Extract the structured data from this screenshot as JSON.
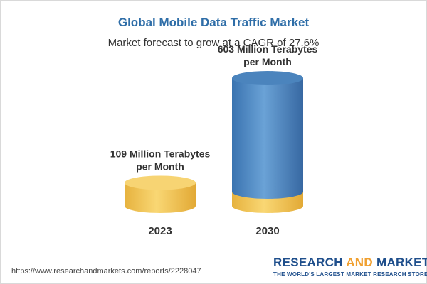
{
  "chart_data": {
    "type": "bar",
    "title": "Global Mobile Data Traffic Market",
    "subtitle": "Market forecast to grow at a CAGR of 27.6%",
    "categories": [
      "2023",
      "2030"
    ],
    "values": [
      109,
      603
    ],
    "value_labels": [
      [
        "109 Million Terabytes",
        "per Month"
      ],
      [
        "603 Million Terabytes",
        "per Month"
      ]
    ],
    "base_color": "#f5c961",
    "highlight_color": "#4f8bc6"
  },
  "footer": {
    "source_url": "https://www.researchandmarkets.com/reports/2228047"
  },
  "logo": {
    "word1": "RESEARCH",
    "word2": "AND",
    "word3": "MARKETS",
    "tagline": "THE WORLD'S LARGEST MARKET RESEARCH STORE"
  }
}
